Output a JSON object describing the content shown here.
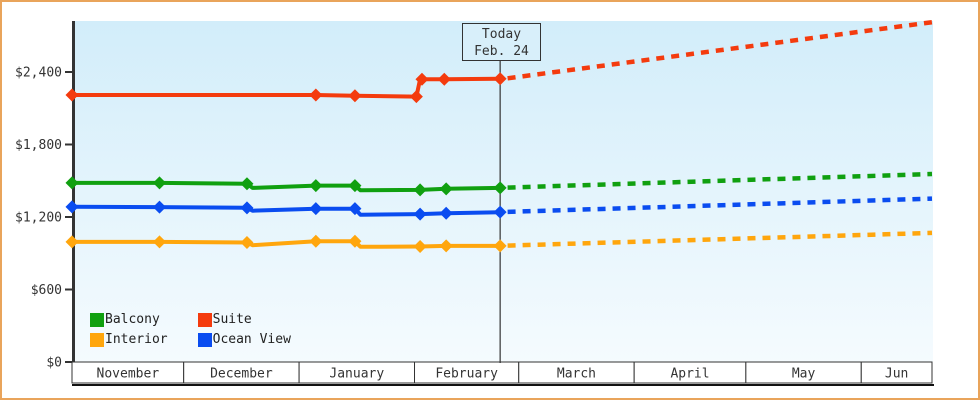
{
  "window": {
    "frame_border_color": "#e9a45b",
    "background_color": "#ffffff"
  },
  "legend": {
    "items": [
      {
        "label": "Balcony",
        "color": "#10a010"
      },
      {
        "label": "Suite",
        "color": "#f43b0e"
      },
      {
        "label": "Interior",
        "color": "#ffa60d"
      },
      {
        "label": "Ocean View",
        "color": "#0a4cf0"
      }
    ]
  },
  "chart_data": {
    "type": "line",
    "title": "",
    "xlabel": "",
    "ylabel": "",
    "grid": false,
    "legend_position": "bottom-left inside plot",
    "plot_bg_top": "#d2edfa",
    "plot_bg_bottom": "#f5fbfe",
    "axis_color": "#333333",
    "ylim": [
      0,
      2820
    ],
    "y_axis": {
      "ticks": [
        {
          "label": "$0",
          "value": 0
        },
        {
          "label": "$600",
          "value": 600
        },
        {
          "label": "$1,200",
          "value": 1200
        },
        {
          "label": "$1,800",
          "value": 1800
        },
        {
          "label": "$2,400",
          "value": 2400
        }
      ]
    },
    "x_axis": {
      "unit": "days-from-Nov-1",
      "total_days": 231,
      "months": [
        {
          "label": "November",
          "days": 30
        },
        {
          "label": "December",
          "days": 31
        },
        {
          "label": "January",
          "days": 31
        },
        {
          "label": "February",
          "days": 28
        },
        {
          "label": "March",
          "days": 31
        },
        {
          "label": "April",
          "days": 30
        },
        {
          "label": "May",
          "days": 31
        },
        {
          "label": "Jun",
          "days": 19
        }
      ]
    },
    "today": {
      "line1": "Today",
      "line2": "Feb. 24",
      "day": 115
    },
    "series": [
      {
        "name": "Suite",
        "color": "#f43b0e",
        "solid": [
          [
            0,
            2210
          ],
          [
            65.5,
            2210
          ],
          [
            76,
            2203
          ],
          [
            92.5,
            2196
          ],
          [
            93.5,
            2340
          ],
          [
            100,
            2340
          ],
          [
            115,
            2344
          ]
        ],
        "markers": [
          [
            0,
            2210
          ],
          [
            65.5,
            2210
          ],
          [
            76,
            2203
          ],
          [
            92.5,
            2196
          ],
          [
            94,
            2340
          ],
          [
            100,
            2340
          ],
          [
            115,
            2344
          ]
        ],
        "dashed": [
          [
            117,
            2348
          ],
          [
            231,
            2812
          ]
        ]
      },
      {
        "name": "Balcony",
        "color": "#10a010",
        "solid": [
          [
            0,
            1482
          ],
          [
            23.5,
            1482
          ],
          [
            47,
            1475
          ],
          [
            48.5,
            1441
          ],
          [
            65.5,
            1460
          ],
          [
            76,
            1460
          ],
          [
            77.5,
            1421
          ],
          [
            93.5,
            1424
          ],
          [
            100.5,
            1433
          ],
          [
            115,
            1441
          ]
        ],
        "markers": [
          [
            0,
            1482
          ],
          [
            23.5,
            1482
          ],
          [
            47,
            1475
          ],
          [
            65.5,
            1460
          ],
          [
            76,
            1460
          ],
          [
            93.5,
            1424
          ],
          [
            100.5,
            1433
          ],
          [
            115,
            1441
          ]
        ],
        "dashed": [
          [
            117,
            1443
          ],
          [
            231,
            1556
          ]
        ]
      },
      {
        "name": "Ocean View",
        "color": "#0a4cf0",
        "solid": [
          [
            0,
            1284
          ],
          [
            23.5,
            1282
          ],
          [
            47,
            1276
          ],
          [
            48.5,
            1252
          ],
          [
            65.5,
            1269
          ],
          [
            76,
            1269
          ],
          [
            77.5,
            1219
          ],
          [
            93.5,
            1224
          ],
          [
            100.5,
            1231
          ],
          [
            115,
            1240
          ]
        ],
        "markers": [
          [
            0,
            1284
          ],
          [
            23.5,
            1282
          ],
          [
            47,
            1276
          ],
          [
            65.5,
            1269
          ],
          [
            76,
            1269
          ],
          [
            93.5,
            1224
          ],
          [
            100.5,
            1231
          ],
          [
            115,
            1240
          ]
        ],
        "dashed": [
          [
            117,
            1242
          ],
          [
            231,
            1352
          ]
        ]
      },
      {
        "name": "Interior",
        "color": "#ffa60d",
        "solid": [
          [
            0,
            994
          ],
          [
            23.5,
            994
          ],
          [
            47,
            989
          ],
          [
            48.5,
            967
          ],
          [
            65.5,
            999
          ],
          [
            76,
            999
          ],
          [
            77.5,
            953
          ],
          [
            93.5,
            956
          ],
          [
            100.5,
            961
          ],
          [
            115,
            961
          ]
        ],
        "markers": [
          [
            0,
            994
          ],
          [
            23.5,
            994
          ],
          [
            47,
            989
          ],
          [
            65.5,
            999
          ],
          [
            76,
            999
          ],
          [
            93.5,
            956
          ],
          [
            100.5,
            961
          ],
          [
            115,
            961
          ]
        ],
        "dashed": [
          [
            117,
            963
          ],
          [
            231,
            1068
          ]
        ]
      }
    ]
  }
}
